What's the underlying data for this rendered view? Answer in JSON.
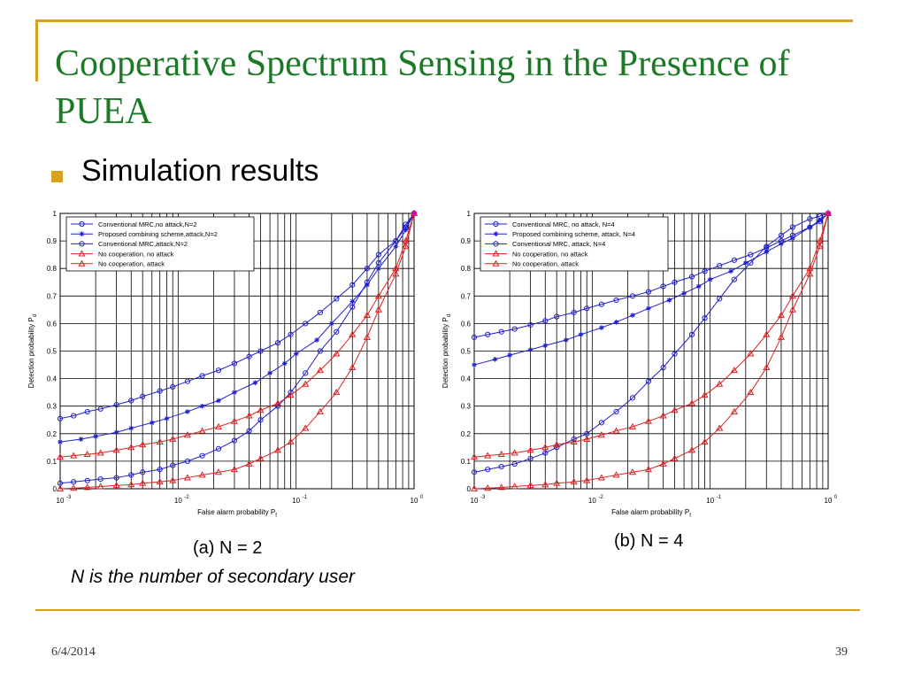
{
  "slide": {
    "title": "Cooperative Spectrum Sensing in the Presence of PUEA",
    "bullet": "Simulation results",
    "caption_a": "(a) N = 2",
    "caption_b": "(b) N = 4",
    "note": "N is the number  of secondary user",
    "date": "6/4/2014",
    "page": "39",
    "accent_color": "#d9a21c",
    "title_color": "#1a7a26"
  },
  "chart_data": [
    {
      "type": "line",
      "xscale": "log",
      "xlim": [
        0.001,
        1
      ],
      "ylim": [
        0,
        1
      ],
      "grid": true,
      "legend_position": "top-left",
      "xlabel": "False alarm probability  P",
      "xlabel_sub": "f",
      "ylabel": "Detection probability  P",
      "ylabel_sub": "d",
      "xticks": [
        {
          "value": 0.001,
          "base": "10",
          "exp": "-3"
        },
        {
          "value": 0.01,
          "base": "10",
          "exp": "-2"
        },
        {
          "value": 0.1,
          "base": "10",
          "exp": "-1"
        },
        {
          "value": 1,
          "base": "10",
          "exp": "0"
        }
      ],
      "yticks": [
        0,
        0.1,
        0.2,
        0.3,
        0.4,
        0.5,
        0.6,
        0.7,
        0.8,
        0.9,
        1
      ],
      "series": [
        {
          "name": "Conventional MRC,no attack,N=2",
          "color": "#1f1fcf",
          "marker": "circle",
          "x": [
            0.001,
            0.0013,
            0.0017,
            0.0022,
            0.003,
            0.004,
            0.005,
            0.007,
            0.009,
            0.012,
            0.016,
            0.022,
            0.03,
            0.04,
            0.05,
            0.07,
            0.09,
            0.12,
            0.16,
            0.22,
            0.3,
            0.4,
            0.5,
            0.7,
            0.85,
            1
          ],
          "y": [
            0.255,
            0.265,
            0.28,
            0.29,
            0.305,
            0.32,
            0.335,
            0.355,
            0.37,
            0.39,
            0.41,
            0.43,
            0.455,
            0.48,
            0.5,
            0.53,
            0.56,
            0.6,
            0.64,
            0.69,
            0.74,
            0.8,
            0.85,
            0.9,
            0.96,
            1
          ]
        },
        {
          "name": "Proposed combining scheme,attack,N=2",
          "color": "#1f1fcf",
          "marker": "star",
          "x": [
            0.001,
            0.0015,
            0.002,
            0.003,
            0.004,
            0.006,
            0.008,
            0.012,
            0.016,
            0.022,
            0.03,
            0.045,
            0.06,
            0.08,
            0.1,
            0.15,
            0.2,
            0.3,
            0.4,
            0.5,
            0.7,
            0.85,
            1
          ],
          "y": [
            0.17,
            0.18,
            0.19,
            0.205,
            0.22,
            0.24,
            0.255,
            0.28,
            0.3,
            0.32,
            0.35,
            0.385,
            0.42,
            0.455,
            0.49,
            0.54,
            0.6,
            0.68,
            0.74,
            0.8,
            0.88,
            0.94,
            1
          ]
        },
        {
          "name": "Conventional MRC,attack,N=2",
          "color": "#1f1fcf",
          "marker": "circle",
          "x": [
            0.001,
            0.0013,
            0.0017,
            0.0022,
            0.003,
            0.004,
            0.005,
            0.007,
            0.009,
            0.012,
            0.016,
            0.022,
            0.03,
            0.04,
            0.05,
            0.07,
            0.09,
            0.12,
            0.16,
            0.22,
            0.3,
            0.4,
            0.5,
            0.7,
            0.85,
            1
          ],
          "y": [
            0.02,
            0.025,
            0.03,
            0.035,
            0.04,
            0.05,
            0.06,
            0.07,
            0.085,
            0.1,
            0.12,
            0.145,
            0.175,
            0.21,
            0.25,
            0.3,
            0.35,
            0.42,
            0.5,
            0.57,
            0.66,
            0.75,
            0.82,
            0.9,
            0.95,
            1
          ]
        },
        {
          "name": "No cooperation, no attack",
          "color": "#e02020",
          "marker": "triangle",
          "x": [
            0.001,
            0.0013,
            0.0017,
            0.0022,
            0.003,
            0.004,
            0.005,
            0.007,
            0.009,
            0.012,
            0.016,
            0.022,
            0.03,
            0.04,
            0.05,
            0.07,
            0.09,
            0.12,
            0.16,
            0.22,
            0.3,
            0.4,
            0.5,
            0.7,
            0.85,
            1
          ],
          "y": [
            0.115,
            0.12,
            0.125,
            0.13,
            0.14,
            0.15,
            0.16,
            0.17,
            0.18,
            0.195,
            0.21,
            0.225,
            0.245,
            0.265,
            0.285,
            0.31,
            0.34,
            0.38,
            0.43,
            0.49,
            0.56,
            0.63,
            0.7,
            0.8,
            0.9,
            1
          ]
        },
        {
          "name": "No cooperation, attack",
          "color": "#e02020",
          "marker": "triangle",
          "x": [
            0.001,
            0.0013,
            0.0017,
            0.0022,
            0.003,
            0.004,
            0.005,
            0.007,
            0.009,
            0.012,
            0.016,
            0.022,
            0.03,
            0.04,
            0.05,
            0.07,
            0.09,
            0.12,
            0.16,
            0.22,
            0.3,
            0.4,
            0.5,
            0.7,
            0.85,
            1
          ],
          "y": [
            0.0,
            0.002,
            0.005,
            0.008,
            0.012,
            0.015,
            0.02,
            0.025,
            0.03,
            0.04,
            0.05,
            0.06,
            0.07,
            0.09,
            0.11,
            0.14,
            0.17,
            0.22,
            0.28,
            0.35,
            0.44,
            0.55,
            0.65,
            0.78,
            0.88,
            1
          ]
        }
      ]
    },
    {
      "type": "line",
      "xscale": "log",
      "xlim": [
        0.001,
        1
      ],
      "ylim": [
        0,
        1
      ],
      "grid": true,
      "legend_position": "top-left",
      "xlabel": "False alarm probability  P",
      "xlabel_sub": "f",
      "ylabel": "Detection probability  P",
      "ylabel_sub": "d",
      "xticks": [
        {
          "value": 0.001,
          "base": "10",
          "exp": "-3"
        },
        {
          "value": 0.01,
          "base": "10",
          "exp": "-2"
        },
        {
          "value": 0.1,
          "base": "10",
          "exp": "-1"
        },
        {
          "value": 1,
          "base": "10",
          "exp": "0"
        }
      ],
      "yticks": [
        0,
        0.1,
        0.2,
        0.3,
        0.4,
        0.5,
        0.6,
        0.7,
        0.8,
        0.9,
        1
      ],
      "series": [
        {
          "name": "Conventional MRC, no attack, N=4",
          "color": "#1f1fcf",
          "marker": "circle",
          "x": [
            0.001,
            0.0013,
            0.0017,
            0.0022,
            0.003,
            0.004,
            0.005,
            0.007,
            0.009,
            0.012,
            0.016,
            0.022,
            0.03,
            0.04,
            0.05,
            0.07,
            0.09,
            0.12,
            0.16,
            0.22,
            0.3,
            0.4,
            0.5,
            0.7,
            0.85,
            1
          ],
          "y": [
            0.55,
            0.56,
            0.57,
            0.58,
            0.595,
            0.61,
            0.625,
            0.64,
            0.655,
            0.67,
            0.685,
            0.7,
            0.715,
            0.735,
            0.75,
            0.77,
            0.79,
            0.81,
            0.83,
            0.85,
            0.875,
            0.9,
            0.92,
            0.95,
            0.97,
            1
          ]
        },
        {
          "name": "Proposed combining scheme, attack, N=4",
          "color": "#1f1fcf",
          "marker": "star",
          "x": [
            0.001,
            0.0015,
            0.002,
            0.003,
            0.004,
            0.006,
            0.008,
            0.012,
            0.016,
            0.022,
            0.03,
            0.045,
            0.06,
            0.08,
            0.1,
            0.15,
            0.2,
            0.3,
            0.4,
            0.5,
            0.7,
            0.85,
            1
          ],
          "y": [
            0.45,
            0.47,
            0.485,
            0.505,
            0.52,
            0.54,
            0.56,
            0.585,
            0.605,
            0.63,
            0.655,
            0.685,
            0.71,
            0.735,
            0.76,
            0.79,
            0.82,
            0.86,
            0.89,
            0.91,
            0.95,
            0.975,
            1
          ]
        },
        {
          "name": "Conventional MRC, attack, N=4",
          "color": "#1f1fcf",
          "marker": "circle",
          "x": [
            0.001,
            0.0013,
            0.0017,
            0.0022,
            0.003,
            0.004,
            0.005,
            0.007,
            0.009,
            0.012,
            0.016,
            0.022,
            0.03,
            0.04,
            0.05,
            0.07,
            0.09,
            0.12,
            0.16,
            0.22,
            0.3,
            0.4,
            0.5,
            0.7,
            0.85,
            1
          ],
          "y": [
            0.06,
            0.07,
            0.08,
            0.09,
            0.11,
            0.13,
            0.15,
            0.18,
            0.2,
            0.24,
            0.28,
            0.33,
            0.39,
            0.44,
            0.49,
            0.56,
            0.62,
            0.69,
            0.76,
            0.82,
            0.88,
            0.92,
            0.95,
            0.98,
            0.99,
            1
          ]
        },
        {
          "name": "No cooperation, no attack",
          "color": "#e02020",
          "marker": "triangle",
          "x": [
            0.001,
            0.0013,
            0.0017,
            0.0022,
            0.003,
            0.004,
            0.005,
            0.007,
            0.009,
            0.012,
            0.016,
            0.022,
            0.03,
            0.04,
            0.05,
            0.07,
            0.09,
            0.12,
            0.16,
            0.22,
            0.3,
            0.4,
            0.5,
            0.7,
            0.85,
            1
          ],
          "y": [
            0.115,
            0.12,
            0.125,
            0.13,
            0.14,
            0.15,
            0.16,
            0.17,
            0.18,
            0.195,
            0.21,
            0.225,
            0.245,
            0.265,
            0.285,
            0.31,
            0.34,
            0.38,
            0.43,
            0.49,
            0.56,
            0.63,
            0.7,
            0.8,
            0.9,
            1
          ]
        },
        {
          "name": "No cooperation, attack",
          "color": "#e02020",
          "marker": "triangle",
          "x": [
            0.001,
            0.0013,
            0.0017,
            0.0022,
            0.003,
            0.004,
            0.005,
            0.007,
            0.009,
            0.012,
            0.016,
            0.022,
            0.03,
            0.04,
            0.05,
            0.07,
            0.09,
            0.12,
            0.16,
            0.22,
            0.3,
            0.4,
            0.5,
            0.7,
            0.85,
            1
          ],
          "y": [
            0.0,
            0.002,
            0.005,
            0.008,
            0.012,
            0.015,
            0.02,
            0.025,
            0.03,
            0.04,
            0.05,
            0.06,
            0.07,
            0.09,
            0.11,
            0.14,
            0.17,
            0.22,
            0.28,
            0.35,
            0.44,
            0.55,
            0.65,
            0.78,
            0.88,
            1
          ]
        }
      ]
    }
  ]
}
